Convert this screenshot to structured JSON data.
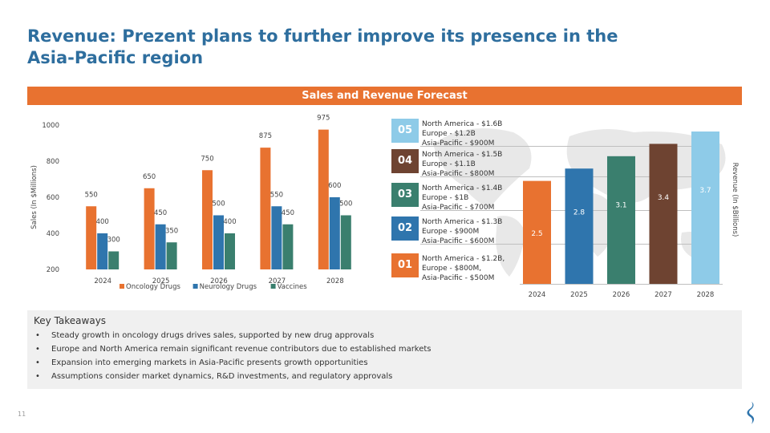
{
  "title": "Revenue: Prezent plans to further improve its presence in the Asia-Pacific region",
  "banner": "Sales and Revenue Forecast",
  "chart_data": [
    {
      "type": "bar",
      "categories": [
        "2024",
        "2025",
        "2026",
        "2027",
        "2028"
      ],
      "series": [
        {
          "name": "Oncology Drugs",
          "values": [
            550,
            650,
            750,
            875,
            975
          ],
          "color": "#e87230"
        },
        {
          "name": "Neurology Drugs",
          "values": [
            400,
            450,
            500,
            550,
            600
          ],
          "color": "#2f75ad"
        },
        {
          "name": "Vaccines",
          "values": [
            300,
            350,
            400,
            450,
            500
          ],
          "color": "#3a7f6e"
        }
      ],
      "ylabel": "Sales (In $Millions)",
      "ylim": [
        200,
        1000
      ],
      "yticks": [
        "200",
        "400",
        "600",
        "800",
        "1000"
      ],
      "grid": false,
      "legend": "bottom"
    },
    {
      "type": "bar",
      "categories": [
        "2024",
        "2025",
        "2026",
        "2027",
        "2028"
      ],
      "values": [
        2.5,
        2.8,
        3.1,
        3.4,
        3.7
      ],
      "labels": [
        "2.5",
        "2.8",
        "3.1",
        "3.4",
        "3.7"
      ],
      "colors": [
        "#e87230",
        "#2f75ad",
        "#3a7f6e",
        "#6e4331",
        "#8ecbe8"
      ],
      "ylabel": "Revenue (In $Billions)",
      "ylim": [
        0,
        3.7
      ],
      "grid": false
    }
  ],
  "regions": [
    {
      "num": "05",
      "color": "#8ecbe8",
      "lines": [
        "North America - $1.6B",
        "Europe - $1.2B",
        "Asia-Pacific - $900M"
      ]
    },
    {
      "num": "04",
      "color": "#6e4331",
      "lines": [
        "North America - $1.5B",
        "Europe - $1.1B",
        "Asia-Pacific - $800M"
      ]
    },
    {
      "num": "03",
      "color": "#3a7f6e",
      "lines": [
        "North America - $1.4B",
        "Europe - $1B",
        "Asia-Pacific - $700M"
      ]
    },
    {
      "num": "02",
      "color": "#2f75ad",
      "lines": [
        "North America - $1.3B",
        "Europe - $900M",
        "Asia-Pacific - $600M"
      ]
    },
    {
      "num": "01",
      "color": "#e87230",
      "lines": [
        "North America - $1.2B,",
        "Europe - $800M,",
        "Asia-Pacific - $500M"
      ]
    }
  ],
  "takeaways": {
    "heading": "Key Takeaways",
    "items": [
      "Steady growth in oncology drugs drives sales, supported by new drug approvals",
      "Europe and North America remain significant revenue contributors due to established markets",
      "Expansion into emerging markets in Asia-Pacific presents growth opportunities",
      "Assumptions consider market dynamics, R&D investments, and regulatory approvals"
    ]
  },
  "page_number": "11",
  "logo_icon": "company-logo-icon"
}
